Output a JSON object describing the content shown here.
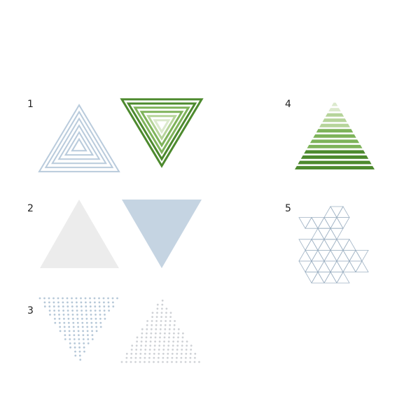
{
  "labels": {
    "one": "1",
    "two": "2",
    "three": "3",
    "four": "4",
    "five": "5"
  },
  "colors": {
    "light_blue": "#c5d4e2",
    "outline_blue": "#b9cbdc",
    "pale_gray": "#ececec",
    "green_dark": "#4d8a2e",
    "green_mid": "#7eb35a",
    "green_light": "#b6d49a",
    "green_pale": "#dbe9cc",
    "dot_blue": "#b6c8d8",
    "dot_gray": "#cfd2d6",
    "grid_stroke": "#9fb2c4"
  },
  "icons": [
    "nested-triangles-blue-icon",
    "nested-triangles-green-icon",
    "solid-triangle-gray-icon",
    "solid-triangle-blue-icon",
    "dotted-triangle-down-icon",
    "dotted-triangle-up-icon",
    "striped-triangle-green-icon",
    "triangle-grid-icon"
  ]
}
